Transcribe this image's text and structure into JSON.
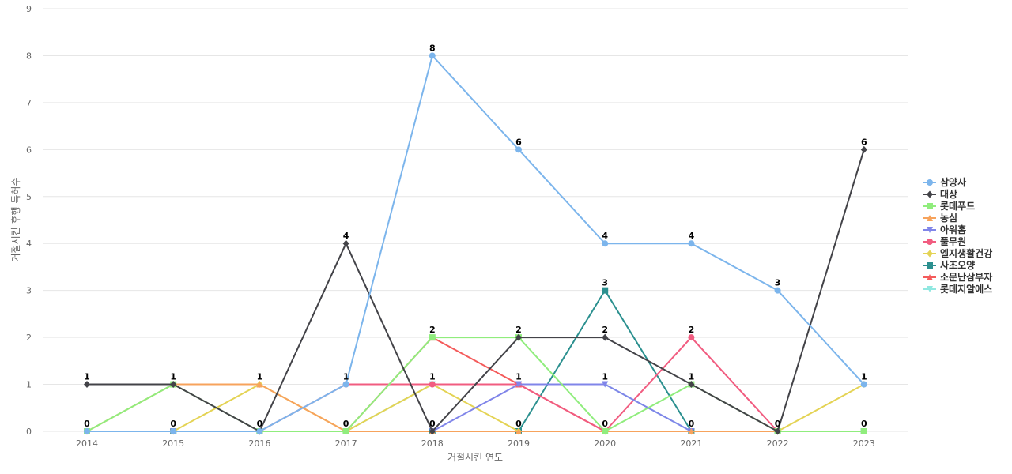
{
  "chart_data": {
    "type": "line",
    "title": "",
    "xlabel": "거절시킨 연도",
    "ylabel": "거절시킨 후행 특허수",
    "ylim": [
      0,
      9
    ],
    "yticks": [
      "0",
      "1",
      "2",
      "3",
      "4",
      "5",
      "6",
      "7",
      "8",
      "9"
    ],
    "categories": [
      "2014",
      "2015",
      "2016",
      "2017",
      "2018",
      "2019",
      "2020",
      "2021",
      "2022",
      "2023"
    ],
    "grid": true,
    "legend_position": "right",
    "series": [
      {
        "name": "삼양사",
        "color": "#7cb5ec",
        "marker": "circle",
        "values": [
          0,
          0,
          0,
          1,
          8,
          6,
          4,
          4,
          3,
          1
        ]
      },
      {
        "name": "대상",
        "color": "#434348",
        "marker": "diamond",
        "values": [
          1,
          1,
          0,
          4,
          0,
          2,
          2,
          1,
          0,
          6
        ]
      },
      {
        "name": "롯데푸드",
        "color": "#90ed7d",
        "marker": "square",
        "values": [
          0,
          1,
          0,
          0,
          2,
          2,
          0,
          1,
          0,
          0
        ]
      },
      {
        "name": "농심",
        "color": "#f7a35c",
        "marker": "triangle",
        "values": [
          0,
          1,
          1,
          0,
          0,
          0,
          0,
          0,
          0,
          0
        ]
      },
      {
        "name": "아워홈",
        "color": "#8085e9",
        "marker": "triangle-down",
        "values": [
          0,
          0,
          0,
          0,
          0,
          1,
          1,
          0,
          0,
          0
        ]
      },
      {
        "name": "풀무원",
        "color": "#f15c80",
        "marker": "circle",
        "values": [
          0,
          0,
          0,
          1,
          1,
          1,
          0,
          2,
          0,
          0
        ]
      },
      {
        "name": "엘지생활건강",
        "color": "#e4d354",
        "marker": "diamond",
        "values": [
          0,
          0,
          1,
          0,
          1,
          0,
          0,
          0,
          0,
          1
        ]
      },
      {
        "name": "사조오양",
        "color": "#2b908f",
        "marker": "square",
        "values": [
          0,
          0,
          0,
          0,
          0,
          0,
          3,
          0,
          0,
          0
        ]
      },
      {
        "name": "소문난삼부자",
        "color": "#f45b5b",
        "marker": "triangle",
        "values": [
          0,
          0,
          0,
          0,
          2,
          1,
          0,
          0,
          0,
          0
        ]
      },
      {
        "name": "롯데지알에스",
        "color": "#91e8e1",
        "marker": "triangle-down",
        "values": [
          0,
          0,
          0,
          0,
          1,
          1,
          1,
          0,
          0,
          0
        ]
      }
    ],
    "data_labels": [
      {
        "x": "2014",
        "text": "1",
        "y": 1
      },
      {
        "x": "2014",
        "text": "0",
        "y": 0
      },
      {
        "x": "2015",
        "text": "1",
        "y": 1
      },
      {
        "x": "2015",
        "text": "0",
        "y": 0
      },
      {
        "x": "2016",
        "text": "1",
        "y": 1
      },
      {
        "x": "2016",
        "text": "0",
        "y": 0
      },
      {
        "x": "2017",
        "text": "4",
        "y": 4
      },
      {
        "x": "2017",
        "text": "1",
        "y": 1
      },
      {
        "x": "2017",
        "text": "0",
        "y": 0
      },
      {
        "x": "2018",
        "text": "8",
        "y": 8
      },
      {
        "x": "2018",
        "text": "2",
        "y": 2
      },
      {
        "x": "2018",
        "text": "1",
        "y": 1
      },
      {
        "x": "2018",
        "text": "0",
        "y": 0
      },
      {
        "x": "2019",
        "text": "6",
        "y": 6
      },
      {
        "x": "2019",
        "text": "2",
        "y": 2
      },
      {
        "x": "2019",
        "text": "1",
        "y": 1
      },
      {
        "x": "2019",
        "text": "0",
        "y": 0
      },
      {
        "x": "2020",
        "text": "4",
        "y": 4
      },
      {
        "x": "2020",
        "text": "3",
        "y": 3
      },
      {
        "x": "2020",
        "text": "2",
        "y": 2
      },
      {
        "x": "2020",
        "text": "1",
        "y": 1
      },
      {
        "x": "2020",
        "text": "0",
        "y": 0
      },
      {
        "x": "2021",
        "text": "4",
        "y": 4
      },
      {
        "x": "2021",
        "text": "2",
        "y": 2
      },
      {
        "x": "2021",
        "text": "1",
        "y": 1
      },
      {
        "x": "2021",
        "text": "0",
        "y": 0
      },
      {
        "x": "2022",
        "text": "3",
        "y": 3
      },
      {
        "x": "2022",
        "text": "0",
        "y": 0
      },
      {
        "x": "2023",
        "text": "6",
        "y": 6
      },
      {
        "x": "2023",
        "text": "1",
        "y": 1
      },
      {
        "x": "2023",
        "text": "0",
        "y": 0
      }
    ]
  }
}
